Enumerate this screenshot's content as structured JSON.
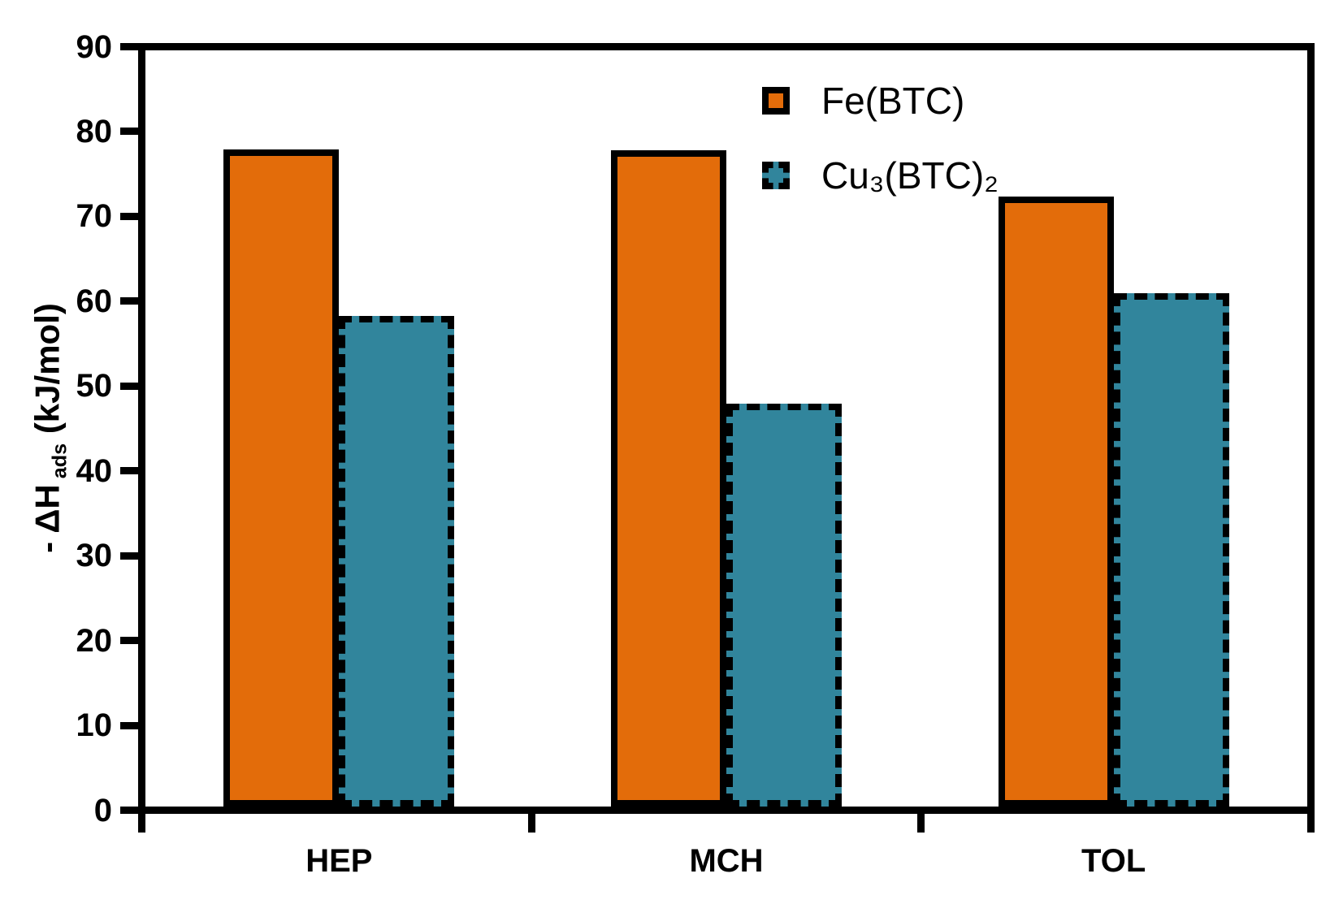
{
  "chart_data": {
    "type": "bar",
    "categories": [
      "HEP",
      "MCH",
      "TOL"
    ],
    "series": [
      {
        "name": "Fe(BTC)",
        "slug": "fe-btc",
        "values": [
          77.5,
          77.4,
          71.9
        ],
        "fill": "#E36C0A",
        "border_color": "#000000",
        "border_style": "solid"
      },
      {
        "name": "Cu₃(BTC)₂",
        "slug": "cu3-btc2",
        "values": [
          57.8,
          47.5,
          60.5
        ],
        "fill": "#31859C",
        "border_color": "#000000",
        "border_style": "dashed"
      }
    ],
    "ylabel_plain": "- ΔH ads (kJ/mol)",
    "ylabel_parts": [
      {
        "text": "- ΔH",
        "sub": false
      },
      {
        "text": " ads",
        "sub": true
      },
      {
        "text": " (kJ/mol)",
        "sub": false
      }
    ],
    "xlabel": "",
    "ylim": [
      0,
      90
    ],
    "yticks": [
      0,
      10,
      20,
      30,
      40,
      50,
      60,
      70,
      80,
      90
    ],
    "grid": false,
    "legend_position": "top-right-inside",
    "colors": {
      "axis": "#000000",
      "text": "#000000",
      "background": "#FFFFFF",
      "fe_fill": "#E36C0A",
      "cu_fill": "#31859C"
    }
  }
}
